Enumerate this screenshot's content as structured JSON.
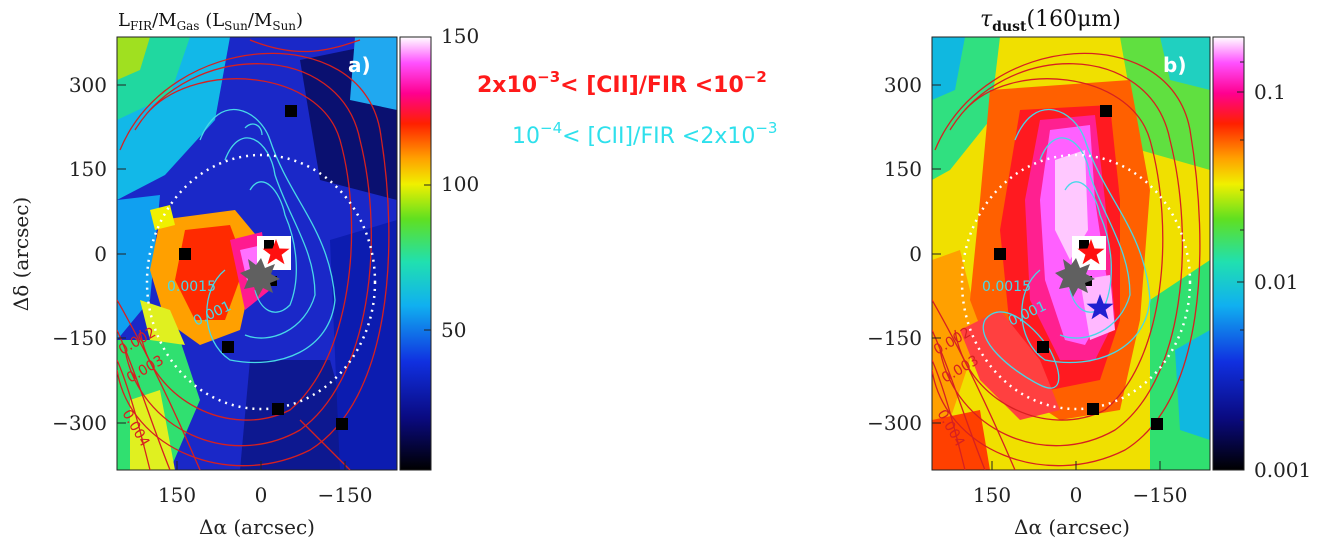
{
  "chart_data": [
    {
      "type": "heatmap",
      "panel_label": "a)",
      "title": "L_FIR/M_Gas (L_Sun/M_Sun)",
      "title_parts": {
        "main": "L",
        "sub1": "FIR",
        "slash": "/M",
        "sub2": "Gas",
        "unit_open": " (L",
        "sub3": "Sun",
        "unit_mid": "/M",
        "sub4": "Sun",
        "unit_close": ")"
      },
      "xlabel": "Δα (arcsec)",
      "ylabel": "Δδ (arcsec)",
      "xticks": [
        "150",
        "0",
        "−150"
      ],
      "yticks": [
        "300",
        "150",
        "0",
        "−150",
        "−300"
      ],
      "colorbar": {
        "ticks": [
          "150",
          "100",
          "50"
        ],
        "range": [
          0,
          150
        ],
        "scale": "linear"
      },
      "contour_labels_red": [
        "0.002",
        "0.003",
        "0.004"
      ],
      "contour_labels_cyan": [
        "0.0015",
        "0.001"
      ]
    },
    {
      "type": "heatmap",
      "panel_label": "b)",
      "title": "τdust(160μm)",
      "title_parts": {
        "main": "τ",
        "sub": "dust",
        "rest": "(160μm)"
      },
      "xlabel": "Δα (arcsec)",
      "ylabel": "",
      "xticks": [
        "150",
        "0",
        "−150"
      ],
      "yticks": [
        "300",
        "150",
        "0",
        "−150",
        "−300"
      ],
      "colorbar": {
        "ticks": [
          "0.1",
          "0.01",
          "0.001"
        ],
        "range": [
          0.001,
          0.2
        ],
        "scale": "log"
      },
      "contour_labels_red": [
        "0.002",
        "0.003",
        "0.004"
      ],
      "contour_labels_cyan": [
        "0.0015",
        "0.001"
      ]
    }
  ],
  "legend": {
    "red": {
      "a": "2x10",
      "e1": "−3",
      "b": "< [CII]/FIR <10",
      "e2": "−2"
    },
    "cyan": {
      "a": "10",
      "e1": "−4",
      "b": "< [CII]/FIR <2x10",
      "e2": "−3"
    }
  },
  "colors": {
    "red_contour": "#d62020",
    "cyan_contour": "#48d8e8",
    "legend_red": "#ff1a1a",
    "legend_cyan": "#2ee0ec"
  }
}
